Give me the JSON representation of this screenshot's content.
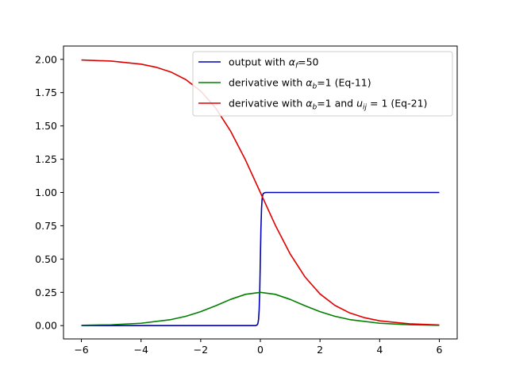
{
  "chart_data": {
    "type": "line",
    "title": "",
    "xlabel": "",
    "ylabel": "",
    "xlim": [
      -6.6,
      6.6
    ],
    "ylim": [
      -0.1,
      2.1
    ],
    "grid": false,
    "legend_placement": "top-right",
    "x_ticks": [
      -6,
      -4,
      -2,
      0,
      2,
      4,
      6
    ],
    "x_tick_labels": [
      "−6",
      "−4",
      "−2",
      "0",
      "2",
      "4",
      "6"
    ],
    "y_ticks": [
      0.0,
      0.25,
      0.5,
      0.75,
      1.0,
      1.25,
      1.5,
      1.75,
      2.0
    ],
    "y_tick_labels": [
      "0.00",
      "0.25",
      "0.50",
      "0.75",
      "1.00",
      "1.25",
      "1.50",
      "1.75",
      "2.00"
    ],
    "series": [
      {
        "name": "output with αf=50",
        "color": "#0000b4",
        "legend": {
          "before": "output with ",
          "sym": "α",
          "sub": "f",
          "after": "=50"
        },
        "x": [
          -6.0,
          -0.5,
          -0.2,
          -0.15,
          -0.1,
          -0.08,
          -0.06,
          -0.04,
          -0.02,
          0.0,
          0.02,
          0.04,
          0.06,
          0.08,
          0.1,
          0.15,
          0.2,
          0.5,
          6.0
        ],
        "y": [
          0.0,
          0.0,
          0.0,
          0.0006,
          0.0067,
          0.018,
          0.047,
          0.119,
          0.269,
          0.5,
          0.731,
          0.881,
          0.953,
          0.982,
          0.993,
          0.999,
          1.0,
          1.0,
          1.0
        ]
      },
      {
        "name": "derivative with αb=1 (Eq-11)",
        "color": "#007f00",
        "legend": {
          "before": "derivative with ",
          "sym": "α",
          "sub": "b",
          "after": "=1 (Eq-11)"
        },
        "x": [
          -6.0,
          -5.0,
          -4.0,
          -3.0,
          -2.5,
          -2.0,
          -1.5,
          -1.0,
          -0.5,
          0.0,
          0.5,
          1.0,
          1.5,
          2.0,
          2.5,
          3.0,
          4.0,
          5.0,
          6.0
        ],
        "y": [
          0.0025,
          0.0066,
          0.0177,
          0.0452,
          0.0701,
          0.105,
          0.149,
          0.197,
          0.235,
          0.25,
          0.235,
          0.197,
          0.149,
          0.105,
          0.0701,
          0.0452,
          0.0177,
          0.0066,
          0.0025
        ]
      },
      {
        "name": "derivative with αb=1 and uij=1 (Eq-21)",
        "color": "#e00000",
        "legend": {
          "before": "derivative with ",
          "sym": "α",
          "sub": "b",
          "mid": "=1 and ",
          "sym2": "u",
          "sub2": "ij",
          "after": " = 1 (Eq-21)"
        },
        "x": [
          -6.0,
          -5.0,
          -4.0,
          -3.5,
          -3.0,
          -2.5,
          -2.0,
          -1.5,
          -1.0,
          -0.5,
          0.0,
          0.5,
          1.0,
          1.5,
          2.0,
          2.5,
          3.0,
          3.5,
          4.0,
          5.0,
          6.0
        ],
        "y": [
          1.995,
          1.987,
          1.964,
          1.941,
          1.905,
          1.848,
          1.762,
          1.635,
          1.462,
          1.245,
          1.0,
          0.755,
          0.538,
          0.365,
          0.238,
          0.152,
          0.095,
          0.059,
          0.036,
          0.0134,
          0.005
        ]
      }
    ]
  }
}
